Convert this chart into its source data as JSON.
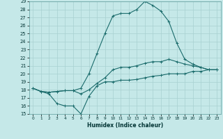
{
  "xlabel": "Humidex (Indice chaleur)",
  "bg_color": "#c5e8e8",
  "line_color": "#1a6b6b",
  "grid_color": "#a8d0d0",
  "xlim": [
    -0.5,
    23.5
  ],
  "ylim": [
    15,
    29
  ],
  "xticks": [
    0,
    1,
    2,
    3,
    4,
    5,
    6,
    7,
    8,
    9,
    10,
    11,
    12,
    13,
    14,
    15,
    16,
    17,
    18,
    19,
    20,
    21,
    22,
    23
  ],
  "yticks": [
    15,
    16,
    17,
    18,
    19,
    20,
    21,
    22,
    23,
    24,
    25,
    26,
    27,
    28,
    29
  ],
  "series1_x": [
    0,
    1,
    2,
    3,
    4,
    5,
    6,
    7,
    8,
    9,
    10,
    11,
    12,
    13,
    14,
    15,
    16,
    17,
    18,
    19,
    20,
    21,
    22,
    23
  ],
  "series1_y": [
    18.2,
    17.8,
    17.5,
    16.3,
    16.0,
    16.0,
    15.0,
    17.2,
    18.5,
    19.0,
    19.0,
    19.2,
    19.2,
    19.3,
    19.5,
    19.7,
    19.8,
    20.0,
    20.0,
    20.0,
    20.3,
    20.3,
    20.5,
    20.5
  ],
  "series2_x": [
    0,
    1,
    2,
    3,
    4,
    5,
    6,
    7,
    8,
    9,
    10,
    11,
    12,
    13,
    14,
    15,
    16,
    17,
    18,
    19,
    20,
    21,
    22,
    23
  ],
  "series2_y": [
    18.2,
    17.8,
    17.7,
    17.8,
    17.9,
    17.9,
    17.5,
    18.0,
    18.8,
    19.5,
    20.5,
    20.8,
    20.8,
    21.0,
    21.3,
    21.5,
    21.5,
    21.8,
    21.5,
    21.2,
    21.0,
    20.8,
    20.5,
    20.5
  ],
  "series3_x": [
    0,
    1,
    2,
    3,
    4,
    5,
    6,
    7,
    8,
    9,
    10,
    11,
    12,
    13,
    14,
    15,
    16,
    17,
    18,
    19,
    20,
    21,
    22,
    23
  ],
  "series3_y": [
    18.2,
    17.8,
    17.7,
    17.8,
    17.9,
    17.9,
    18.2,
    20.0,
    22.5,
    25.0,
    27.2,
    27.5,
    27.5,
    28.0,
    29.0,
    28.5,
    27.8,
    26.5,
    23.8,
    21.8,
    21.2,
    20.8,
    20.5,
    20.5
  ]
}
